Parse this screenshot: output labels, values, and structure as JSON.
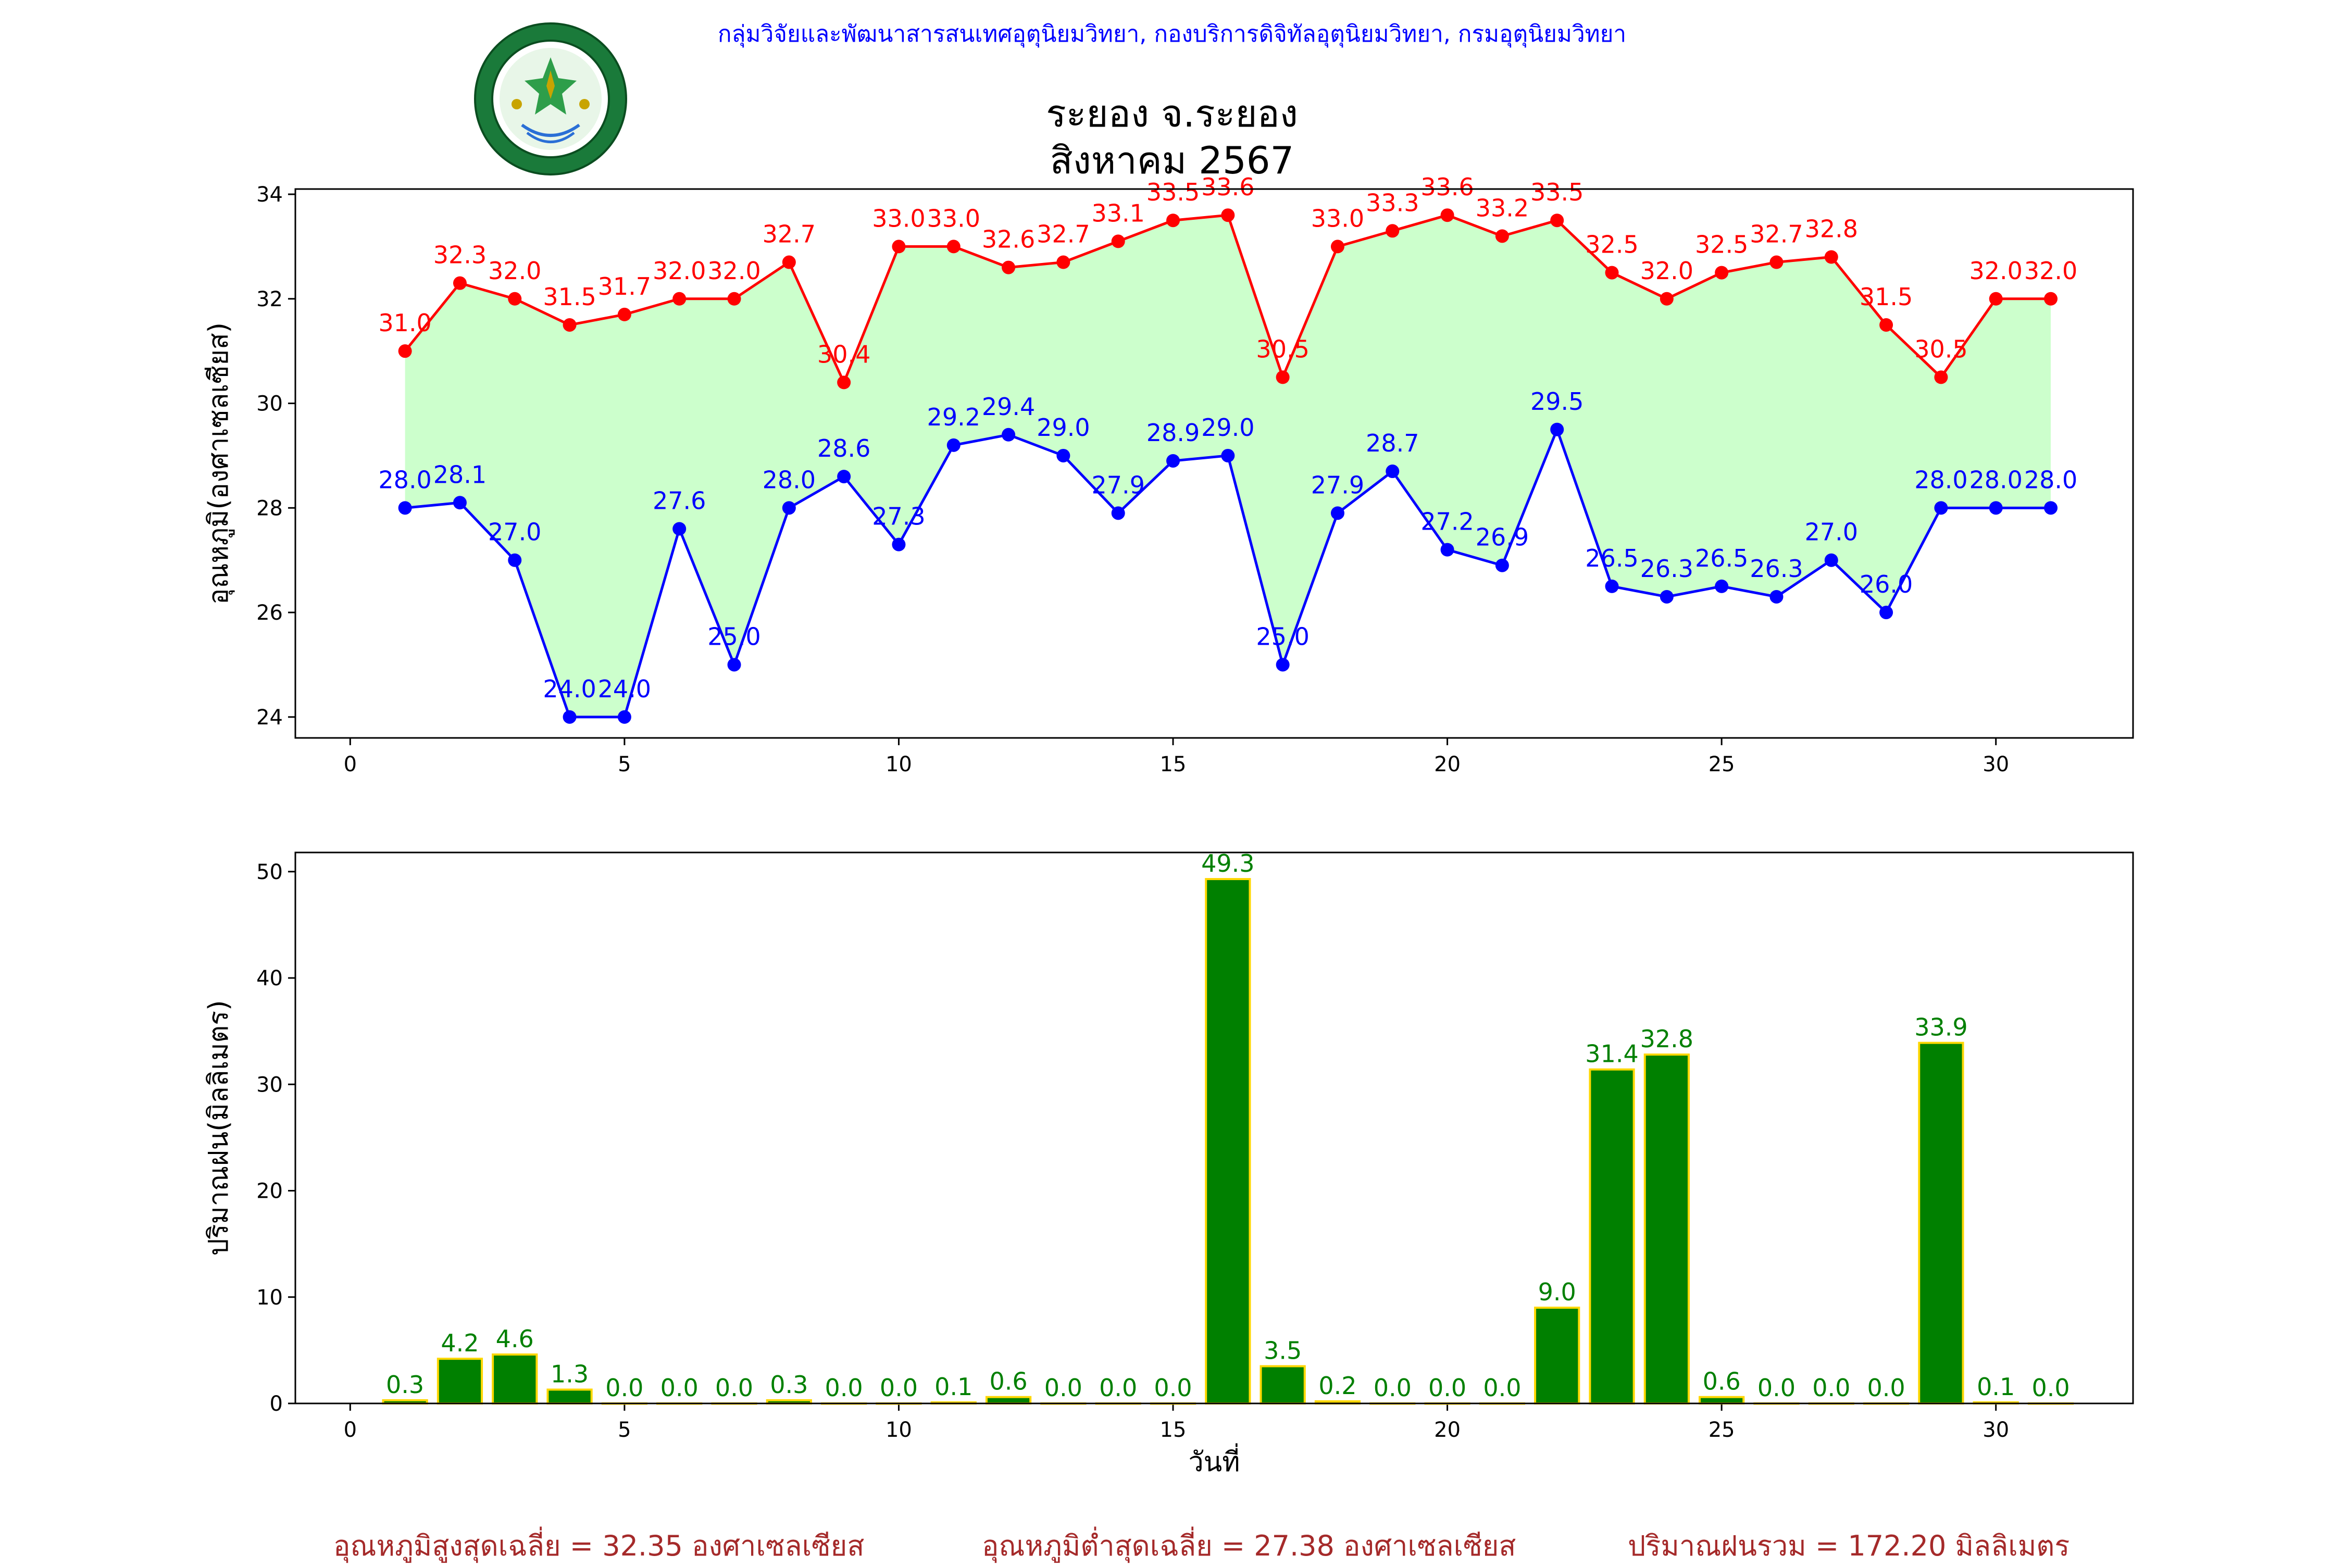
{
  "header": {
    "agency": "กลุ่มวิจัยและพัฒนาสารสนเทศอุตุนิยมวิทยา, กองบริการดิจิทัลอุตุนิยมวิทยา, กรมอุตุนิยมวิทยา",
    "logo_icon": "meteorological-department-seal",
    "title_line1": "ระยอง จ.ระยอง",
    "title_line2": "สิงหาคม 2567"
  },
  "colors": {
    "max_line": "#ff0000",
    "min_line": "#0000ff",
    "range_fill": "#ccffcc",
    "rain_bar": "#008000",
    "rain_edge": "#ffd700",
    "rain_label": "#008000",
    "footer_text": "#a52a2a"
  },
  "chart_data": [
    {
      "type": "line",
      "ylabel": "อุณหภูมิ(องศาเซลเซียส)",
      "xlabel": "",
      "xlim": [
        -1,
        32.5
      ],
      "ylim": [
        23.6,
        34.1
      ],
      "xticks": [
        0,
        5,
        10,
        15,
        20,
        25,
        30
      ],
      "yticks": [
        24,
        26,
        28,
        30,
        32,
        34
      ],
      "x": [
        1,
        2,
        3,
        4,
        5,
        6,
        7,
        8,
        9,
        10,
        11,
        12,
        13,
        14,
        15,
        16,
        17,
        18,
        19,
        20,
        21,
        22,
        23,
        24,
        25,
        26,
        27,
        28,
        29,
        30,
        31
      ],
      "series": [
        {
          "key": "max",
          "values": [
            31.0,
            32.3,
            32.0,
            31.5,
            31.7,
            32.0,
            32.0,
            32.7,
            30.4,
            33.0,
            33.0,
            32.6,
            32.7,
            33.1,
            33.5,
            33.6,
            30.5,
            33.0,
            33.3,
            33.6,
            33.2,
            33.5,
            32.5,
            32.0,
            32.5,
            32.7,
            32.8,
            31.5,
            30.5,
            32.0,
            32.0
          ]
        },
        {
          "key": "min",
          "values": [
            28.0,
            28.1,
            27.0,
            24.0,
            24.0,
            27.6,
            25.0,
            28.0,
            28.6,
            27.3,
            29.2,
            29.4,
            29.0,
            27.9,
            28.9,
            29.0,
            25.0,
            27.9,
            28.7,
            27.2,
            26.9,
            29.5,
            26.5,
            26.3,
            26.5,
            26.3,
            27.0,
            26.0,
            28.0,
            28.0,
            28.0
          ]
        }
      ],
      "fill_between": true,
      "grid": false
    },
    {
      "type": "bar",
      "ylabel": "ปริมาณฝน(มิลลิเมตร)",
      "xlabel": "วันที่",
      "xlim": [
        -1,
        32.5
      ],
      "ylim": [
        0,
        51.8
      ],
      "xticks": [
        0,
        5,
        10,
        15,
        20,
        25,
        30
      ],
      "yticks": [
        0,
        10,
        20,
        30,
        40,
        50
      ],
      "x": [
        1,
        2,
        3,
        4,
        5,
        6,
        7,
        8,
        9,
        10,
        11,
        12,
        13,
        14,
        15,
        16,
        17,
        18,
        19,
        20,
        21,
        22,
        23,
        24,
        25,
        26,
        27,
        28,
        29,
        30,
        31
      ],
      "values": [
        0.3,
        4.2,
        4.6,
        1.3,
        0.0,
        0.0,
        0.0,
        0.3,
        0.0,
        0.0,
        0.1,
        0.6,
        0.0,
        0.0,
        0.0,
        49.3,
        3.5,
        0.2,
        0.0,
        0.0,
        0.0,
        9.0,
        31.4,
        32.8,
        0.6,
        0.0,
        0.0,
        0.0,
        33.9,
        0.1,
        0.0
      ],
      "grid": false
    }
  ],
  "footer": {
    "avg_max": "อุณหภูมิสูงสุดเฉลี่ย = 32.35 องศาเซลเซียส",
    "avg_min": "อุณหภูมิต่ำสุดเฉลี่ย = 27.38 องศาเซลเซียส",
    "rain_total": "ปริมาณฝนรวม = 172.20 มิลลิเมตร"
  }
}
